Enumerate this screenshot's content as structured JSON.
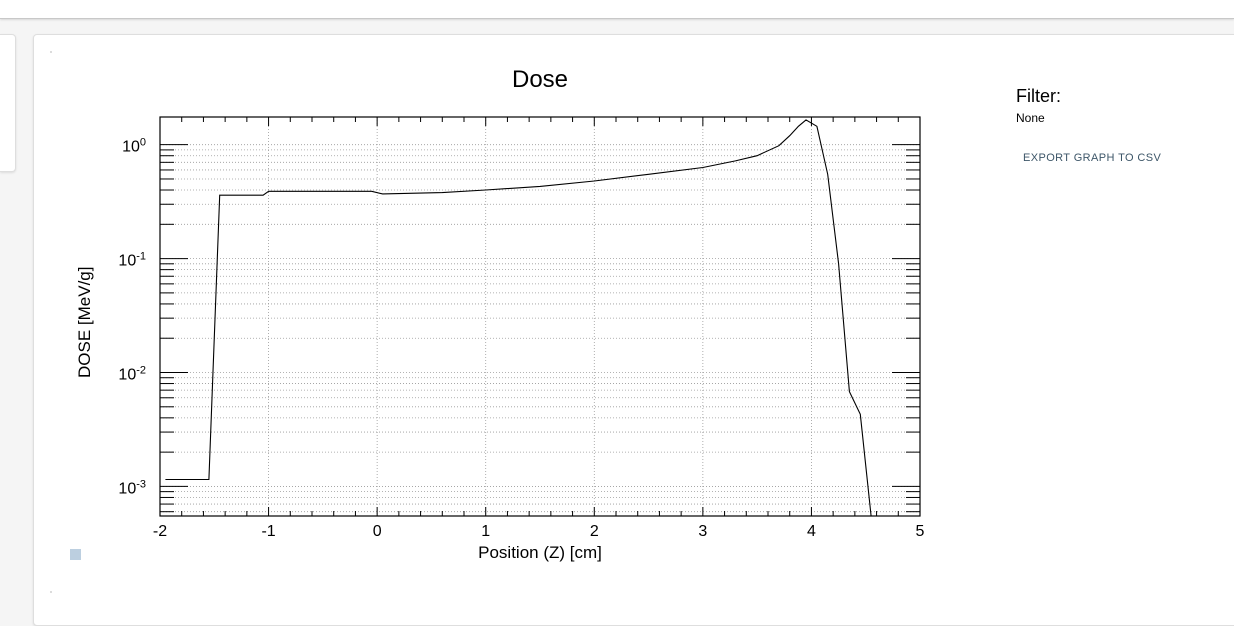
{
  "filter": {
    "title": "Filter:",
    "value": "None"
  },
  "export_button": {
    "label": "EXPORT GRAPH TO CSV"
  },
  "legend": {
    "swatch_color": "#bccfe0"
  },
  "chart_data": {
    "type": "line",
    "title": "Dose",
    "xlabel": "Position (Z) [cm]",
    "ylabel": "DOSE [MeV/g]",
    "yscale": "log",
    "xlim": [
      -2,
      5
    ],
    "ylim": [
      0.00055,
      1.75
    ],
    "grid": true,
    "x_ticks": [
      -2,
      -1,
      0,
      1,
      2,
      3,
      4,
      5
    ],
    "x_tick_labels": [
      "-2",
      "-1",
      "0",
      "1",
      "2",
      "3",
      "4",
      "5"
    ],
    "y_ticks": [
      {
        "value": 0.001,
        "base": "10",
        "exp": "-3"
      },
      {
        "value": 0.01,
        "base": "10",
        "exp": "-2"
      },
      {
        "value": 0.1,
        "base": "10",
        "exp": "-1"
      },
      {
        "value": 1,
        "base": "10",
        "exp": "0"
      }
    ],
    "series": [
      {
        "color": "#000000",
        "x": [
          -1.95,
          -1.55,
          -1.45,
          -1.05,
          -1.0,
          -0.05,
          0.05,
          0.6,
          1.0,
          1.5,
          2.0,
          2.5,
          3.0,
          3.3,
          3.5,
          3.7,
          3.8,
          3.88,
          3.95,
          4.05,
          4.15,
          4.25,
          4.35,
          4.45,
          4.55
        ],
        "y": [
          0.00115,
          0.00115,
          0.36,
          0.36,
          0.39,
          0.39,
          0.37,
          0.38,
          0.4,
          0.43,
          0.48,
          0.55,
          0.63,
          0.72,
          0.8,
          0.98,
          1.2,
          1.45,
          1.65,
          1.45,
          0.55,
          0.09,
          0.0068,
          0.0043,
          0.00055
        ]
      }
    ]
  }
}
